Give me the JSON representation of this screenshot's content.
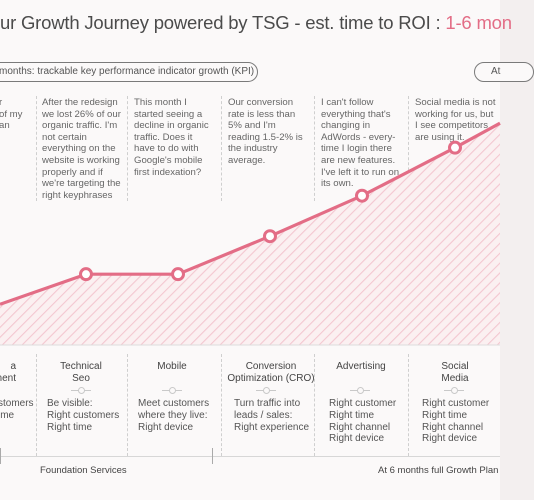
{
  "title": {
    "main": "ur Growth Journey powered by TSG - est. time to ROI : ",
    "highlight": "1-6 mon"
  },
  "pills": {
    "left": "months: trackable key performance indicator growth (KPI)",
    "right": "At"
  },
  "scenarios": [
    {
      "text": "r\nof my\nan"
    },
    {
      "text": "After the redesign we lost 26% of our organic traffic. I'm not certain everything on the website is working properly and if we're targeting the right keyphrases"
    },
    {
      "text": "This month I started seeing a decline in organic traffic. Does it have to do with Google's mobile first indexation?"
    },
    {
      "text": "Our conversion rate is less than 5% and I'm reading 1.5-2% is the industry average."
    },
    {
      "text": "I can't follow everything that's changing in AdWords - every-time I login there are new features. I've left it to run on its own."
    },
    {
      "text": "Social media is not working for us, but I see competitors are using it."
    }
  ],
  "services": [
    {
      "title": "a\nment",
      "desc": "stomers\nime"
    },
    {
      "title": "Technical\nSeo",
      "desc": "Be visible:\nRight customers\nRight time"
    },
    {
      "title": "Mobile",
      "desc": "Meet customers\nwhere they live:\nRight device"
    },
    {
      "title": "Conversion\nOptimization (CRO)",
      "desc": "Turn traffic into\nleads / sales:\nRight experience"
    },
    {
      "title": "Advertising",
      "desc": "Right customer\nRight time\nRight channel\nRight device"
    },
    {
      "title": "Social\nMedia",
      "desc": "Right customer\nRight time\nRight channel\nRight device"
    }
  ],
  "footer": {
    "left": "Foundation Services",
    "right": "At 6 months full Growth Plan"
  },
  "colors": {
    "accent": "#e36d86",
    "title_text": "#4b4b4b",
    "body_text": "#555555",
    "background": "#fbf9f9"
  },
  "chart_data": {
    "type": "line",
    "categories": [
      "Technical Seo",
      "Mobile",
      "Conversion Optimization (CRO)",
      "Advertising",
      "Social Media"
    ],
    "values": [
      28,
      28,
      43,
      59,
      78
    ],
    "ylim": [
      0,
      100
    ],
    "grid": false
  }
}
